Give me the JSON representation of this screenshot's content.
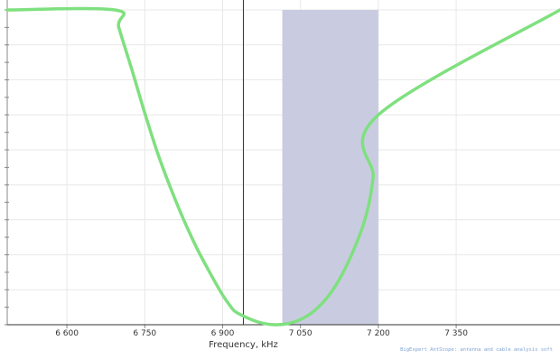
{
  "colors": {
    "background": "#ffffff",
    "grid": "#e8e8e8",
    "band": "#c9cce0",
    "curve": "#7fe07f",
    "crosshair": "#333333",
    "axis": "#888888",
    "watermark": "#7fa3d6"
  },
  "chart_data": {
    "type": "line",
    "title": "",
    "xlabel": "Frequency, kHz",
    "ylabel": "",
    "xlim": [
      6485,
      7550
    ],
    "ylim": [
      1.0,
      10.0
    ],
    "x_ticks": [
      6600,
      6750,
      6900,
      7050,
      7200,
      7350
    ],
    "x_tick_labels": [
      "6 600",
      "6 750",
      "6 900",
      "7 050",
      "7 200",
      "7 350"
    ],
    "grid": true,
    "legend": "none",
    "series": [
      {
        "x": [
          6485,
          6692,
          6700,
          6725,
          6750,
          6775,
          6800,
          6825,
          6850,
          6875,
          6900,
          6915,
          6925,
          6950,
          6975,
          7000,
          7025,
          7050,
          7075,
          7100,
          7125,
          7150,
          7175,
          7190,
          7200,
          7550
        ],
        "y": [
          10.0,
          10.0,
          9.5,
          8.3,
          7.05,
          5.9,
          4.9,
          4.0,
          3.2,
          2.5,
          1.85,
          1.53,
          1.37,
          1.18,
          1.05,
          1.0,
          1.03,
          1.15,
          1.38,
          1.75,
          2.3,
          3.05,
          4.05,
          5.2,
          7.0,
          10.0
        ]
      }
    ],
    "highlight_band": {
      "x_start": 7015,
      "x_end": 7200
    },
    "crosshair": {
      "x": 6940,
      "y": 1.0
    }
  },
  "watermark": "BigExpert AntScope: antenna and cable analysis soft"
}
